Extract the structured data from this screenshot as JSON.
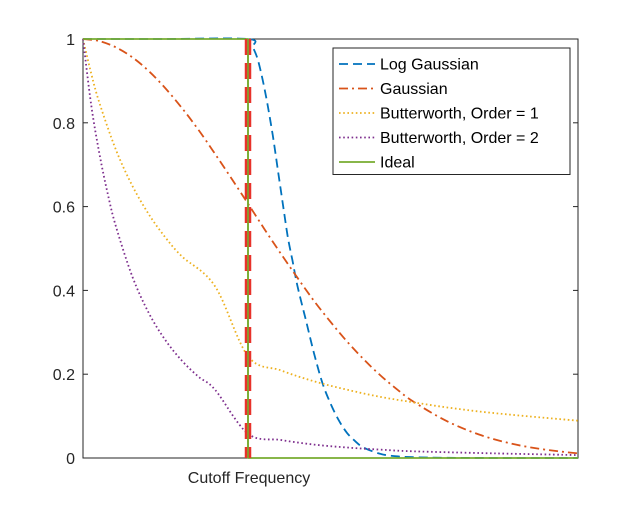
{
  "chart_data": {
    "type": "line",
    "title": "",
    "xlabel": "Cutoff Frequency",
    "ylabel": "",
    "xlim": [
      0,
      3
    ],
    "ylim": [
      0,
      1
    ],
    "yticks": [
      0,
      0.2,
      0.4,
      0.6,
      0.8,
      1
    ],
    "ytick_labels": [
      "0",
      "0.2",
      "0.4",
      "0.6",
      "0.8",
      "1"
    ],
    "xticks": [],
    "grid": false,
    "box": true,
    "legend_position": "top-right",
    "cutoff_x": 1,
    "series": [
      {
        "name": "Log Gaussian",
        "color": "#0072BD",
        "style": "dashed",
        "x": [
          0,
          0.5,
          1.0,
          1.03,
          1.06,
          1.09,
          1.12,
          1.15,
          1.18,
          1.21,
          1.24,
          1.27,
          1.3,
          1.35,
          1.4,
          1.45,
          1.5,
          1.55,
          1.6,
          1.65,
          1.7,
          1.8,
          1.9,
          2.0,
          2.2,
          2.5,
          3.0
        ],
        "y": [
          1,
          1,
          1,
          0.98,
          0.95,
          0.9,
          0.84,
          0.77,
          0.69,
          0.61,
          0.53,
          0.47,
          0.41,
          0.33,
          0.25,
          0.18,
          0.13,
          0.09,
          0.06,
          0.04,
          0.025,
          0.01,
          0.004,
          0.002,
          0.0005,
          0.0001,
          0
        ]
      },
      {
        "name": "Gaussian",
        "color": "#D95319",
        "style": "dashdot",
        "x": [
          0,
          0.1,
          0.2,
          0.3,
          0.4,
          0.5,
          0.6,
          0.7,
          0.8,
          0.9,
          1.0,
          1.1,
          1.2,
          1.3,
          1.4,
          1.5,
          1.6,
          1.7,
          1.8,
          1.9,
          2.0,
          2.2,
          2.4,
          2.6,
          2.8,
          3.0
        ],
        "y": [
          1.0,
          0.995,
          0.98,
          0.956,
          0.923,
          0.882,
          0.835,
          0.783,
          0.726,
          0.667,
          0.607,
          0.546,
          0.487,
          0.43,
          0.375,
          0.325,
          0.278,
          0.236,
          0.198,
          0.165,
          0.135,
          0.089,
          0.056,
          0.034,
          0.02,
          0.011
        ]
      },
      {
        "name": "Butterworth, Order = 1",
        "color": "#EDB120",
        "style": "dotted",
        "x": [
          0,
          0.05,
          0.1,
          0.2,
          0.3,
          0.4,
          0.5,
          0.6,
          0.8,
          1.0,
          1.2,
          1.4,
          1.6,
          1.8,
          2.0,
          2.2,
          2.4,
          2.6,
          2.8,
          3.0
        ],
        "y": [
          1.0,
          0.917,
          0.847,
          0.735,
          0.649,
          0.581,
          0.526,
          0.481,
          0.41,
          0.243,
          0.209,
          0.183,
          0.163,
          0.146,
          0.133,
          0.121,
          0.111,
          0.103,
          0.096,
          0.089
        ]
      },
      {
        "name": "Butterworth, Order = 2",
        "color": "#7E2F8E",
        "style": "dotted",
        "x": [
          0,
          0.05,
          0.1,
          0.15,
          0.2,
          0.3,
          0.4,
          0.5,
          0.6,
          0.7,
          0.8,
          1.0,
          1.2,
          1.4,
          1.6,
          1.8,
          2.0,
          2.5,
          3.0
        ],
        "y": [
          1.0,
          0.841,
          0.725,
          0.63,
          0.552,
          0.432,
          0.345,
          0.281,
          0.232,
          0.194,
          0.163,
          0.058,
          0.043,
          0.032,
          0.025,
          0.02,
          0.016,
          0.011,
          0.007
        ]
      },
      {
        "name": "Ideal",
        "color": "#77AC30",
        "style": "solid",
        "x": [
          0,
          1,
          1,
          3
        ],
        "y": [
          1,
          1,
          0,
          0
        ]
      }
    ]
  },
  "overlay": {
    "name": "cutoff-marker",
    "color": "#E8322A",
    "style": "thick-dashed"
  }
}
